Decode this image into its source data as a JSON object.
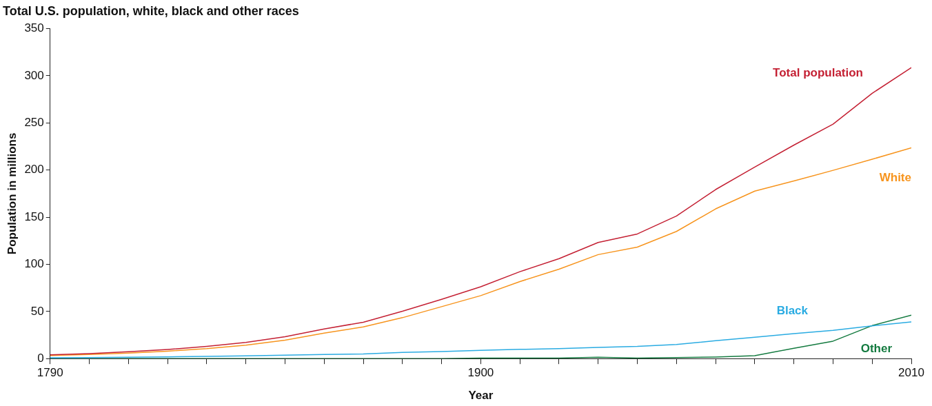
{
  "chart_data": {
    "type": "line",
    "title": "Total U.S. population, white, black and other races",
    "xlabel": "Year",
    "ylabel": "Population in millions",
    "x": [
      1790,
      1800,
      1810,
      1820,
      1830,
      1840,
      1850,
      1860,
      1870,
      1880,
      1890,
      1900,
      1910,
      1920,
      1930,
      1940,
      1950,
      1960,
      1970,
      1980,
      1990,
      2000,
      2010
    ],
    "series": [
      {
        "name": "Total population",
        "color": "#c42033",
        "values": [
          3.9,
          5.3,
          7.2,
          9.6,
          12.9,
          17.1,
          23.2,
          31.4,
          38.6,
          50.2,
          62.9,
          76.2,
          92.2,
          106.0,
          123.2,
          132.2,
          151.3,
          179.3,
          203.2,
          226.5,
          248.7,
          281.4,
          308.7
        ]
      },
      {
        "name": "White",
        "color": "#f7941d",
        "values": [
          3.2,
          4.3,
          5.9,
          7.9,
          10.5,
          14.2,
          19.6,
          27.0,
          33.6,
          43.4,
          55.1,
          66.8,
          81.7,
          94.8,
          110.3,
          118.2,
          134.9,
          158.8,
          177.7,
          188.4,
          199.7,
          211.5,
          223.6
        ]
      },
      {
        "name": "Black",
        "color": "#29abe2",
        "values": [
          0.8,
          1.0,
          1.4,
          1.8,
          2.3,
          2.9,
          3.6,
          4.4,
          4.9,
          6.6,
          7.5,
          8.8,
          9.8,
          10.5,
          11.9,
          12.9,
          15.0,
          18.9,
          22.6,
          26.5,
          30.0,
          34.7,
          38.9
        ]
      },
      {
        "name": "Other",
        "color": "#137a3f",
        "values": [
          0,
          0,
          0,
          0,
          0,
          0,
          0,
          0,
          0,
          0,
          0,
          0.5,
          0.5,
          0.5,
          1.5,
          0.5,
          1.0,
          1.6,
          3.0,
          11.0,
          18.5,
          35.0,
          46.0
        ]
      }
    ],
    "xlim": [
      1790,
      2010
    ],
    "xticks": [
      1790,
      {
        "value": 1800,
        "label": null
      },
      {
        "value": 1810,
        "label": null
      },
      {
        "value": 1820,
        "label": null
      },
      {
        "value": 1830,
        "label": null
      },
      {
        "value": 1840,
        "label": null
      },
      {
        "value": 1850,
        "label": null
      },
      {
        "value": 1860,
        "label": null
      },
      {
        "value": 1870,
        "label": null
      },
      {
        "value": 1880,
        "label": null
      },
      {
        "value": 1890,
        "label": null
      },
      1900,
      {
        "value": 1910,
        "label": null
      },
      {
        "value": 1920,
        "label": null
      },
      {
        "value": 1930,
        "label": null
      },
      {
        "value": 1940,
        "label": null
      },
      {
        "value": 1950,
        "label": null
      },
      {
        "value": 1960,
        "label": null
      },
      {
        "value": 1970,
        "label": null
      },
      {
        "value": 1980,
        "label": null
      },
      {
        "value": 1990,
        "label": null
      },
      {
        "value": 2000,
        "label": null
      },
      2010
    ],
    "ylim": [
      0,
      350
    ],
    "yticks": [
      0,
      50,
      100,
      150,
      200,
      250,
      300,
      350
    ],
    "grid": false,
    "legend": false,
    "marker": "none",
    "line_style": "solid"
  }
}
